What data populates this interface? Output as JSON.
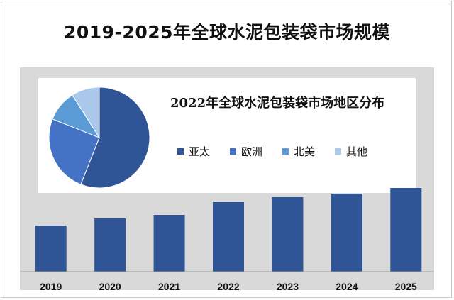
{
  "title": "2019-2025年全球水泥包装袋市场规模",
  "chart_data": [
    {
      "type": "bar",
      "title": "",
      "categories": [
        "2019",
        "2020",
        "2021",
        "2022",
        "2023",
        "2024",
        "2025"
      ],
      "values": [
        65,
        75,
        80,
        98,
        105,
        110,
        118
      ],
      "ylim": [
        0,
        140
      ],
      "color": "#2f5597",
      "grid": false
    },
    {
      "type": "pie",
      "title": "2022年全球水泥包装袋市场地区分布",
      "categories": [
        "亚太",
        "欧洲",
        "北美",
        "其他"
      ],
      "values": [
        56,
        25,
        10,
        9
      ],
      "colors": [
        "#2f5597",
        "#4472c4",
        "#5b9bd5",
        "#a9c8ec"
      ],
      "legend": "right"
    }
  ]
}
